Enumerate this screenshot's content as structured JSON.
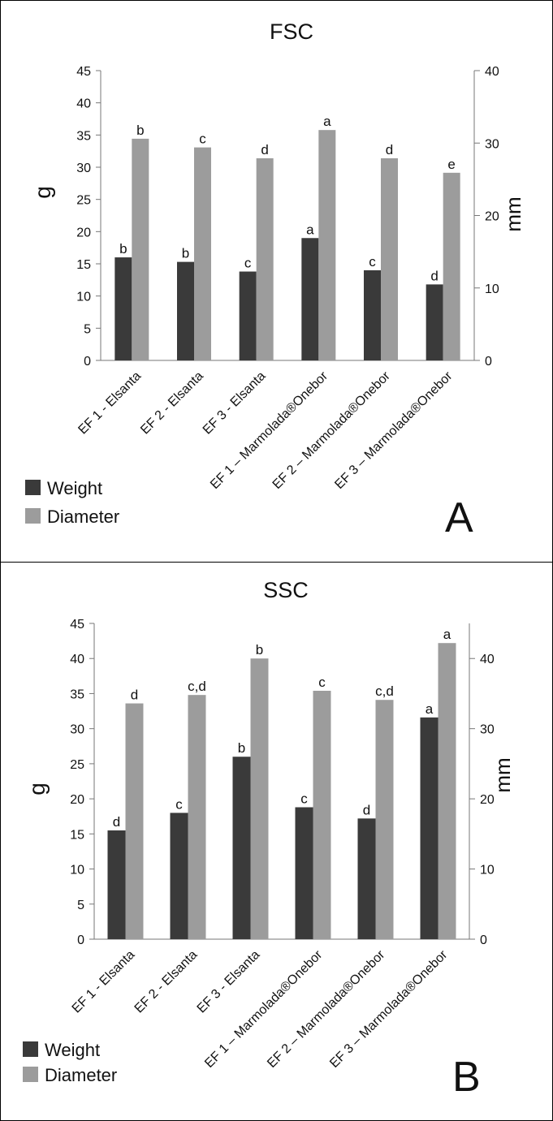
{
  "chart_data": [
    {
      "type": "bar",
      "title": "FSC",
      "panel_letter": "A",
      "categories": [
        "EF 1 - Elsanta",
        "EF 2 - Elsanta",
        "EF 3 - Elsanta",
        "EF 1 – Marmolada®Onebor",
        "EF 2 – Marmolada®Onebor",
        "EF 3 – Marmolada®Onebor"
      ],
      "ylabel": "g",
      "y2label": "mm",
      "ylim": [
        0,
        45
      ],
      "y2lim": [
        0,
        40
      ],
      "yticks": [
        0,
        5,
        10,
        15,
        20,
        25,
        30,
        35,
        40,
        45
      ],
      "y2ticks": [
        0,
        10,
        20,
        30,
        40
      ],
      "series": [
        {
          "name": "Weight",
          "axis": "left",
          "color": "#3a3a3a",
          "values": [
            16.0,
            15.3,
            13.8,
            19.0,
            14.0,
            11.8
          ],
          "labels": [
            "b",
            "b",
            "c",
            "a",
            "c",
            "d"
          ]
        },
        {
          "name": "Diameter",
          "axis": "right",
          "color": "#9c9c9c",
          "values": [
            30.6,
            29.4,
            27.9,
            31.8,
            27.9,
            25.9
          ],
          "labels": [
            "b",
            "c",
            "d",
            "a",
            "d",
            "e"
          ]
        }
      ],
      "legend_position": "bottom-left",
      "grid": false
    },
    {
      "type": "bar",
      "title": "SSC",
      "panel_letter": "B",
      "categories": [
        "EF 1 - Elsanta",
        "EF 2 - Elsanta",
        "EF 3 - Elsanta",
        "EF 1 – Marmolada®Onebor",
        "EF 2 – Marmolada®Onebor",
        "EF 3 – Marmolada®Onebor"
      ],
      "ylabel": "g",
      "y2label": "mm",
      "ylim": [
        0,
        45
      ],
      "y2lim": [
        0,
        45
      ],
      "yticks": [
        0,
        5,
        10,
        15,
        20,
        25,
        30,
        35,
        40,
        45
      ],
      "y2ticks": [
        0,
        10,
        20,
        30,
        40
      ],
      "series": [
        {
          "name": "Weight",
          "axis": "left",
          "color": "#3a3a3a",
          "values": [
            15.5,
            18.0,
            26.0,
            18.8,
            17.2,
            31.6
          ],
          "labels": [
            "d",
            "c",
            "b",
            "c",
            "d",
            "a"
          ]
        },
        {
          "name": "Diameter",
          "axis": "right",
          "color": "#9c9c9c",
          "values": [
            33.6,
            34.8,
            40.0,
            35.4,
            34.1,
            42.2
          ],
          "labels": [
            "d",
            "c,d",
            "b",
            "c",
            "c,d",
            "a"
          ]
        }
      ],
      "legend_position": "bottom-left",
      "grid": false
    }
  ]
}
